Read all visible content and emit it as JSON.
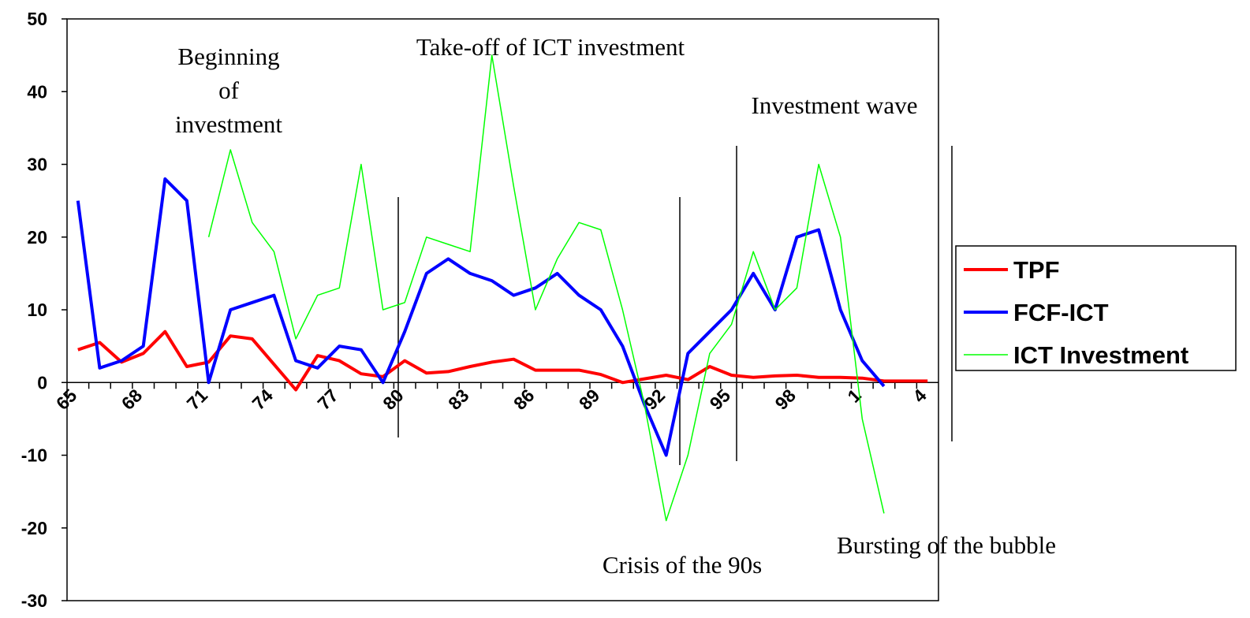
{
  "chart_data": {
    "type": "line",
    "categories": [
      "65",
      null,
      null,
      "68",
      null,
      null,
      "71",
      null,
      null,
      "74",
      null,
      null,
      "77",
      null,
      null,
      "80",
      null,
      null,
      "83",
      null,
      null,
      "86",
      null,
      null,
      "89",
      null,
      null,
      "92",
      null,
      null,
      "95",
      null,
      null,
      "98",
      null,
      null,
      "1",
      null,
      null,
      "4"
    ],
    "series": [
      {
        "name": "TPF",
        "color": "#ff0000",
        "values": [
          4.5,
          5.5,
          2.8,
          4,
          7,
          2.2,
          2.8,
          6.4,
          6,
          2.5,
          -1,
          3.7,
          3,
          1.2,
          0.8,
          3,
          1.3,
          1.5,
          2.2,
          2.8,
          3.2,
          1.7,
          1.7,
          1.7,
          1.1,
          0,
          0.5,
          1,
          0.4,
          2.2,
          1,
          0.7,
          0.9,
          1,
          0.7,
          0.7,
          0.6,
          0.2,
          0.2,
          0.2
        ]
      },
      {
        "name": "FCF-ICT",
        "color": "#0000ff",
        "values": [
          25,
          2,
          3,
          5,
          28,
          25,
          0,
          10,
          11,
          12,
          3,
          2,
          5,
          4.5,
          0,
          7,
          15,
          17,
          15,
          14,
          12,
          13,
          15,
          12,
          10,
          5,
          -3,
          -10,
          4,
          7,
          10,
          15,
          10,
          20,
          21,
          10,
          3,
          -0.5,
          null,
          null
        ]
      },
      {
        "name": "ICT Investment",
        "color": "#00ff00",
        "values": [
          null,
          null,
          null,
          null,
          null,
          null,
          20,
          32,
          22,
          18,
          6,
          12,
          13,
          30,
          10,
          11,
          20,
          19,
          18,
          45,
          27,
          10,
          17,
          22,
          21,
          10,
          -3,
          -19,
          -10,
          4,
          8,
          18,
          10,
          13,
          30,
          20,
          -5,
          -18,
          null,
          null
        ]
      }
    ],
    "ylim": [
      -30,
      50
    ],
    "yticks": [
      -30,
      -20,
      -10,
      0,
      10,
      20,
      30,
      40,
      50
    ],
    "legend": "right",
    "annotations": [
      [
        "Beginning",
        "of",
        "investment"
      ],
      "Take-off of ICT investment",
      "Investment wave",
      "Crisis of the 90s",
      "Bursting of the bubble"
    ]
  }
}
